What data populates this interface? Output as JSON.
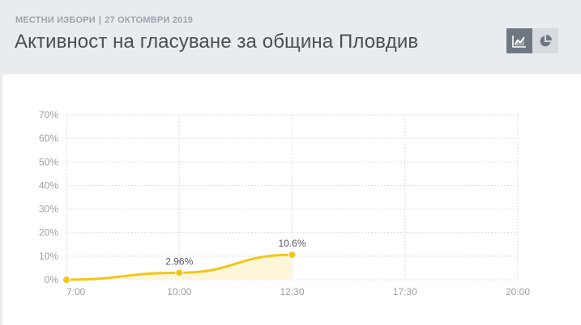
{
  "header": {
    "eyebrow_section": "МЕСТНИ ИЗБОРИ",
    "eyebrow_separator": "|",
    "eyebrow_date": "27 ОКТОМВРИ 2019",
    "title": "Активност на гласуване за община Пловдив"
  },
  "view_toggle": {
    "active": "line-chart-icon",
    "buttons": [
      {
        "icon": "line-chart-icon"
      },
      {
        "icon": "pie-chart-icon"
      }
    ]
  },
  "colors": {
    "line": "#f5c518",
    "area": "#fdf6d9",
    "grid": "#d9dde1",
    "toggle_active": "#6f7880",
    "toggle_inactive": "#d6dbe0"
  },
  "chart_data": {
    "type": "line",
    "categories": [
      "7:00",
      "10:00",
      "12:30",
      "17:30",
      "20:00"
    ],
    "values": [
      0,
      2.96,
      10.6,
      null,
      null
    ],
    "data_labels": [
      "",
      "2.96%",
      "10.6%",
      "",
      ""
    ],
    "yticks": [
      "0%",
      "10%",
      "20%",
      "30%",
      "40%",
      "50%",
      "60%",
      "70%"
    ],
    "ylim": [
      0,
      70
    ],
    "grid": true,
    "area_fill": true
  }
}
